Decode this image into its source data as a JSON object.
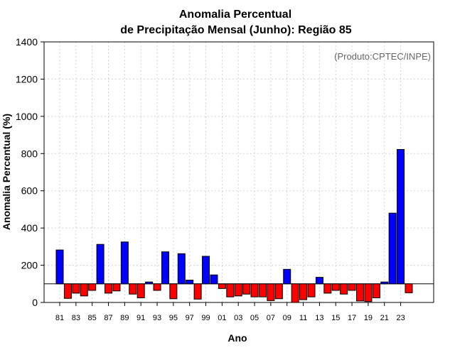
{
  "chart_data": {
    "type": "bar",
    "title_line1": "Anomalia Percentual",
    "title_line2": "de Precipitação Mensal (Junho): Região 85",
    "xlabel": "Ano",
    "ylabel": "Anomalia Percentual (%)",
    "annotation": "(Produto:CPTEC/INPE)",
    "ylim": [
      0,
      1400
    ],
    "yticks": [
      "0",
      "200",
      "400",
      "600",
      "800",
      "1000",
      "1200",
      "1400"
    ],
    "ytick_values": [
      0,
      200,
      400,
      600,
      800,
      1000,
      1200,
      1400
    ],
    "baseline": 100,
    "grid": true,
    "colors": {
      "above": "#0000ff",
      "below": "#ff0000",
      "edge": "#000000",
      "grid": "#d3d3d3"
    },
    "categories": [
      "81",
      "82",
      "83",
      "84",
      "85",
      "86",
      "87",
      "88",
      "89",
      "90",
      "91",
      "92",
      "93",
      "94",
      "95",
      "96",
      "97",
      "98",
      "99",
      "00",
      "01",
      "02",
      "03",
      "04",
      "05",
      "06",
      "07",
      "08",
      "09",
      "10",
      "11",
      "12",
      "13",
      "14",
      "15",
      "16",
      "17",
      "18",
      "19",
      "20",
      "21",
      "22",
      "23",
      "24"
    ],
    "xtick_labels": [
      "81",
      "83",
      "85",
      "87",
      "89",
      "91",
      "93",
      "95",
      "97",
      "99",
      "01",
      "03",
      "05",
      "07",
      "09",
      "11",
      "13",
      "15",
      "17",
      "19",
      "21",
      "23"
    ],
    "values": [
      282,
      22,
      50,
      35,
      65,
      312,
      50,
      62,
      325,
      45,
      25,
      110,
      65,
      272,
      20,
      262,
      120,
      18,
      248,
      148,
      75,
      30,
      35,
      45,
      30,
      30,
      10,
      20,
      178,
      0,
      15,
      30,
      135,
      50,
      65,
      45,
      65,
      8,
      5,
      25,
      110,
      480,
      822,
      52
    ]
  }
}
